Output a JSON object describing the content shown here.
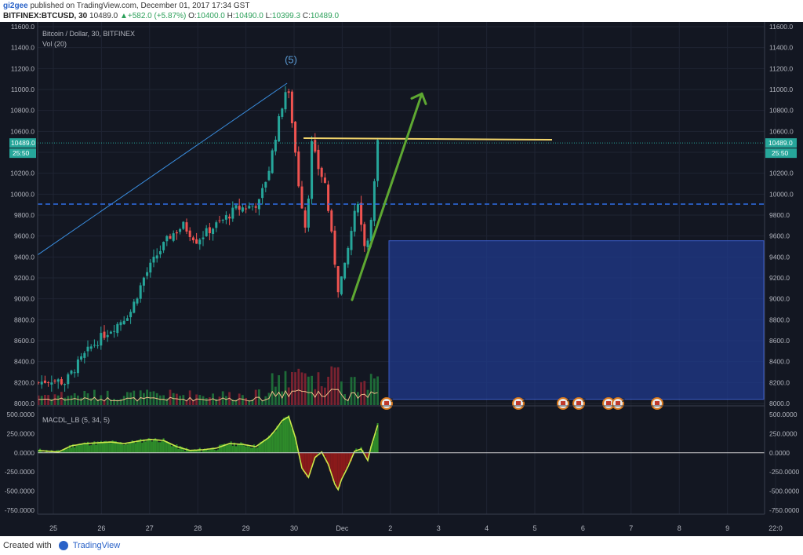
{
  "header": {
    "author": "gi2gee",
    "published": "published on TradingView.com, December 01, 2017 17:34 GST",
    "symbol": "BITFINEX:BTCUSD, 30",
    "last": "10489.0",
    "change": "+582.0 (+5.87%)",
    "open_label": "O:",
    "open": "10400.0",
    "high_label": "H:",
    "high": "10490.0",
    "low_label": "L:",
    "low": "10399.3",
    "close_label": "C:",
    "close": "10489.0"
  },
  "footer": {
    "created_with": "Created with",
    "brand": "TradingView"
  },
  "colors": {
    "background": "#131722",
    "grid": "#1f2433",
    "up": "#26a69a",
    "down": "#ef5350",
    "hline_blue": "#2f6ee8",
    "hline_yellow": "#f2d56b",
    "arrow": "#5ea832",
    "box": "#203a8c",
    "macd_line": "#c9e84a",
    "macd_up": "#2e8b2a",
    "macd_down": "#8b1a1a",
    "vol_ma": "#f0c08a",
    "price_tag": "#26a69a"
  },
  "chart_data": {
    "type": "candlestick",
    "title": "Bitcoin / Dollar, 30, BITFINEX",
    "volume_label": "Vol (20)",
    "macd_label": "MACDL_LB (5, 34, 5)",
    "wave_label": "(5)",
    "price_axis_ticks": [
      11600,
      11400,
      11200,
      11000,
      10800,
      10600,
      10400,
      10200,
      10000,
      9800,
      9600,
      9400,
      9200,
      9000,
      8800,
      8600,
      8400,
      8200,
      8000
    ],
    "ylim": [
      8000,
      11600
    ],
    "macd_axis_ticks": [
      "500.0000",
      "250.0000",
      "0.0000",
      "-250.0000",
      "-500.0000",
      "-750.0000"
    ],
    "macd_ylim": [
      -800,
      550
    ],
    "x_tick_labels": [
      "25",
      "26",
      "27",
      "28",
      "29",
      "30",
      "Dec",
      "2",
      "3",
      "4",
      "5",
      "6",
      "7",
      "8",
      "9",
      "22:0"
    ],
    "current_price": "10489.0",
    "countdown": "25:50",
    "price_path": [
      [
        0,
        8200
      ],
      [
        4,
        8230
      ],
      [
        8,
        8200
      ],
      [
        12,
        8380
      ],
      [
        16,
        8540
      ],
      [
        20,
        8660
      ],
      [
        24,
        8760
      ],
      [
        28,
        8880
      ],
      [
        32,
        9200
      ],
      [
        36,
        9420
      ],
      [
        40,
        9600
      ],
      [
        44,
        9700
      ],
      [
        48,
        9560
      ],
      [
        52,
        9660
      ],
      [
        56,
        9750
      ],
      [
        60,
        9860
      ],
      [
        64,
        9880
      ],
      [
        67,
        9920
      ],
      [
        70,
        10240
      ],
      [
        72,
        10560
      ],
      [
        74,
        10850
      ],
      [
        75.5,
        11050
      ],
      [
        77,
        10700
      ],
      [
        79,
        10100
      ],
      [
        81,
        9700
      ],
      [
        82,
        10000
      ],
      [
        83,
        10480
      ],
      [
        85,
        10250
      ],
      [
        87,
        10100
      ],
      [
        89,
        9600
      ],
      [
        91,
        9100
      ],
      [
        93,
        9300
      ],
      [
        95,
        9650
      ],
      [
        97,
        9950
      ],
      [
        98,
        9700
      ],
      [
        99.5,
        9450
      ],
      [
        101,
        9800
      ],
      [
        102,
        10100
      ],
      [
        103,
        10489
      ]
    ],
    "levels": {
      "blue_dashed": 9905,
      "yellow_top": 10535
    },
    "zone": {
      "price_top": 9555,
      "price_bottom": 8040
    },
    "macd_path": [
      [
        0,
        30
      ],
      [
        6,
        10
      ],
      [
        10,
        90
      ],
      [
        14,
        120
      ],
      [
        18,
        130
      ],
      [
        22,
        140
      ],
      [
        26,
        120
      ],
      [
        30,
        150
      ],
      [
        34,
        175
      ],
      [
        38,
        160
      ],
      [
        42,
        80
      ],
      [
        46,
        30
      ],
      [
        50,
        40
      ],
      [
        54,
        60
      ],
      [
        58,
        120
      ],
      [
        62,
        110
      ],
      [
        66,
        80
      ],
      [
        70,
        200
      ],
      [
        72,
        300
      ],
      [
        74,
        420
      ],
      [
        76,
        470
      ],
      [
        78,
        200
      ],
      [
        80,
        -200
      ],
      [
        82,
        -320
      ],
      [
        84,
        -60
      ],
      [
        86,
        10
      ],
      [
        88,
        -150
      ],
      [
        90,
        -410
      ],
      [
        91,
        -480
      ],
      [
        92,
        -350
      ],
      [
        94,
        -180
      ],
      [
        96,
        20
      ],
      [
        98,
        50
      ],
      [
        100,
        -100
      ],
      [
        101,
        80
      ],
      [
        103,
        360
      ]
    ],
    "events": [
      "5",
      "2",
      "4",
      "8",
      "6",
      "2",
      ""
    ]
  }
}
